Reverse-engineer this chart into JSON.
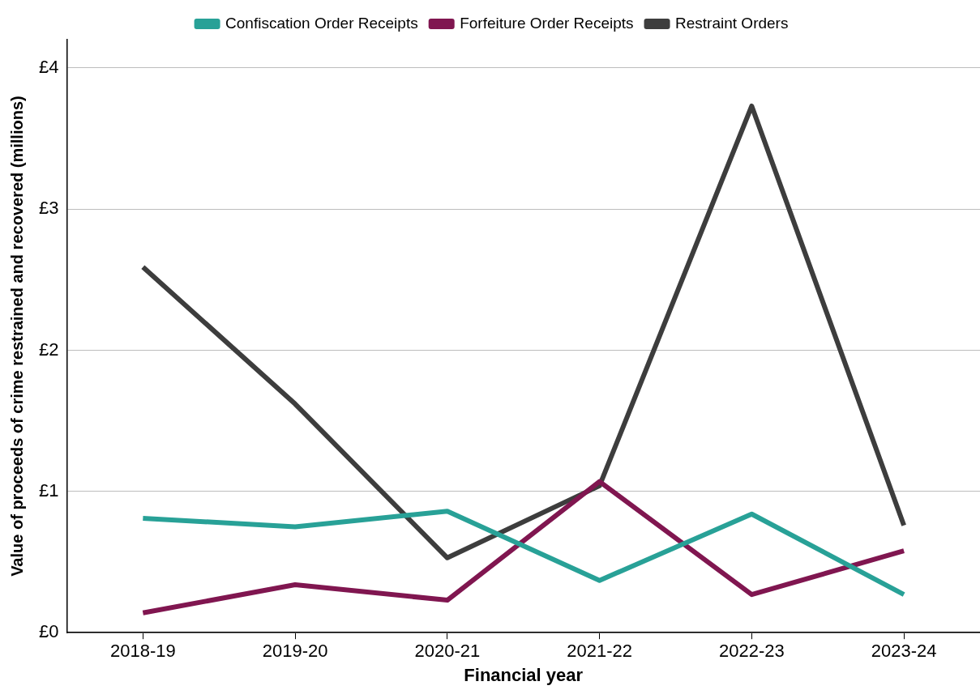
{
  "chart_data": {
    "type": "line",
    "xlabel": "Financial year",
    "ylabel": "Value of proceeds of crime restrained and recovered (millions)",
    "categories": [
      "2018-19",
      "2019-20",
      "2020-21",
      "2021-22",
      "2022-23",
      "2023-24"
    ],
    "series": [
      {
        "name": "Confiscation Order Receipts",
        "color": "#28a197",
        "values": [
          0.81,
          0.75,
          0.86,
          0.37,
          0.84,
          0.27
        ]
      },
      {
        "name": "Forfeiture Order Receipts",
        "color": "#801650",
        "values": [
          0.14,
          0.34,
          0.23,
          1.07,
          0.27,
          0.58
        ]
      },
      {
        "name": "Restraint Orders",
        "color": "#3d3d3d",
        "values": [
          2.59,
          1.62,
          0.53,
          1.04,
          3.73,
          0.76
        ]
      }
    ],
    "ylim": [
      0,
      4.2
    ],
    "yticks": [
      {
        "value": 0,
        "label": "£0"
      },
      {
        "value": 1,
        "label": "£1"
      },
      {
        "value": 2,
        "label": "£2"
      },
      {
        "value": 3,
        "label": "£3"
      },
      {
        "value": 4,
        "label": "£4"
      }
    ],
    "grid": "y",
    "legend": "top",
    "marker": "none",
    "line_style": "solid"
  }
}
